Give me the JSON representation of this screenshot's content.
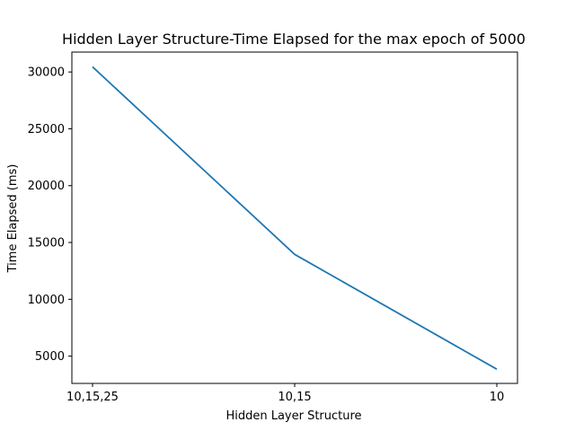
{
  "chart_data": {
    "type": "line",
    "title": "Hidden Layer Structure-Time Elapsed for the max epoch of 5000",
    "xlabel": "Hidden Layer Structure",
    "ylabel": "Time Elapsed (ms)",
    "categories": [
      "10,15,25",
      "10,15",
      "10"
    ],
    "series": [
      {
        "values": [
          30450,
          13950,
          3850
        ],
        "color": "#1f77b4"
      }
    ],
    "ylim": [
      2600,
      31750
    ],
    "yticks": [
      5000,
      10000,
      15000,
      20000,
      25000,
      30000
    ],
    "grid": false,
    "legend": "none"
  }
}
